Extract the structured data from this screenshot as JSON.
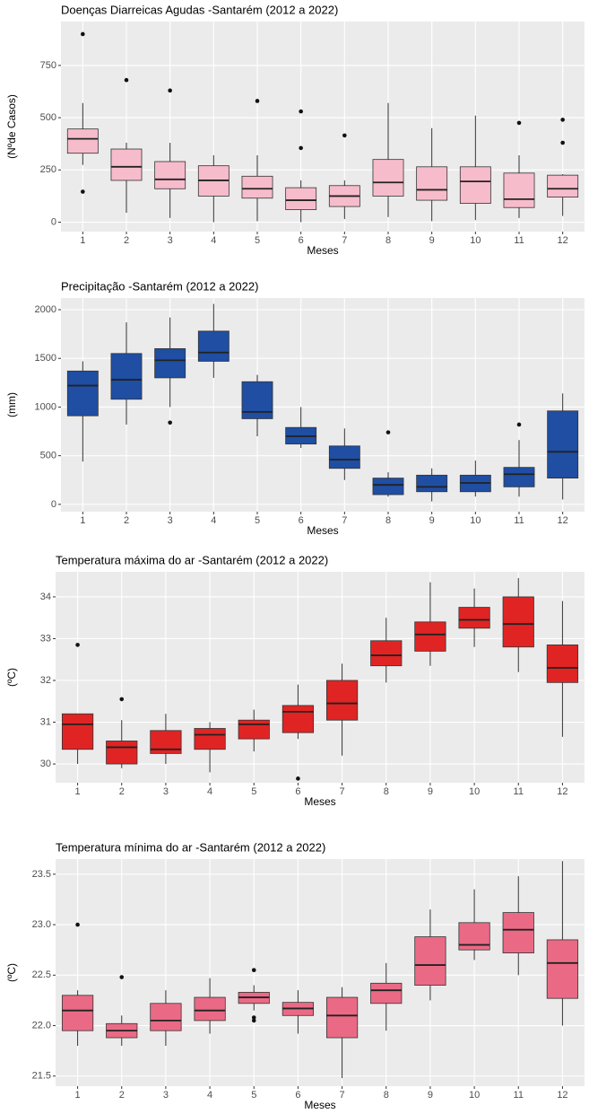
{
  "chart_data": [
    {
      "type": "box",
      "title": "Doenças Diarreicas Agudas -Santarém (2012 a 2022)",
      "x_label": "Meses",
      "y_label": "(Nºde Casos)",
      "categories": [
        "1",
        "2",
        "3",
        "4",
        "5",
        "6",
        "7",
        "8",
        "9",
        "10",
        "11",
        "12"
      ],
      "color": "#f7bccb",
      "ylim": [
        -45,
        960
      ],
      "yticks": [
        0,
        250,
        500,
        750
      ],
      "grid": true,
      "stats": [
        [
          274,
          330,
          399,
          446,
          570
        ],
        [
          45,
          200,
          265,
          350,
          380
        ],
        [
          20,
          160,
          205,
          290,
          380
        ],
        [
          0,
          125,
          200,
          270,
          320
        ],
        [
          5,
          115,
          160,
          220,
          320
        ],
        [
          0,
          60,
          105,
          165,
          200
        ],
        [
          15,
          75,
          125,
          175,
          200
        ],
        [
          25,
          125,
          190,
          300,
          570
        ],
        [
          5,
          105,
          155,
          265,
          450
        ],
        [
          10,
          90,
          195,
          265,
          510
        ],
        [
          20,
          70,
          110,
          235,
          320
        ],
        [
          30,
          120,
          160,
          225,
          230
        ]
      ],
      "outliers": [
        [
          146,
          900
        ],
        [
          680
        ],
        [
          630
        ],
        [],
        [
          580
        ],
        [
          355,
          530
        ],
        [
          415
        ],
        [],
        [],
        [],
        [
          475
        ],
        [
          380,
          490
        ]
      ]
    },
    {
      "type": "box",
      "title": "Precipitação -Santarém (2012 a 2022)",
      "x_label": "Meses",
      "y_label": "(mm)",
      "categories": [
        "1",
        "2",
        "3",
        "4",
        "5",
        "6",
        "7",
        "8",
        "9",
        "10",
        "11",
        "12"
      ],
      "color": "#1f4ea3",
      "ylim": [
        -75,
        2120
      ],
      "yticks": [
        0,
        500,
        1000,
        1500,
        2000
      ],
      "grid": true,
      "stats": [
        [
          440,
          910,
          1220,
          1370,
          1470
        ],
        [
          820,
          1080,
          1280,
          1550,
          1870
        ],
        [
          1000,
          1300,
          1480,
          1600,
          1920
        ],
        [
          1300,
          1470,
          1560,
          1780,
          2060
        ],
        [
          700,
          880,
          950,
          1260,
          1330
        ],
        [
          580,
          620,
          700,
          790,
          1000
        ],
        [
          250,
          370,
          460,
          600,
          780
        ],
        [
          80,
          100,
          200,
          270,
          330
        ],
        [
          30,
          130,
          180,
          300,
          370
        ],
        [
          80,
          130,
          220,
          300,
          450
        ],
        [
          80,
          180,
          310,
          380,
          660
        ],
        [
          50,
          270,
          540,
          960,
          1140
        ]
      ],
      "outliers": [
        [],
        [],
        [
          840
        ],
        [],
        [],
        [],
        [],
        [
          740
        ],
        [],
        [],
        [
          820
        ],
        []
      ]
    },
    {
      "type": "box",
      "title": "Temperatura máxima do ar -Santarém (2012 a 2022)",
      "x_label": "Meses",
      "y_label": "(ºC)",
      "categories": [
        "1",
        "2",
        "3",
        "4",
        "5",
        "6",
        "7",
        "8",
        "9",
        "10",
        "11",
        "12"
      ],
      "color": "#e02424",
      "ylim": [
        29.55,
        34.6
      ],
      "yticks": [
        30,
        31,
        32,
        33,
        34
      ],
      "grid": true,
      "stats": [
        [
          30.0,
          30.35,
          30.95,
          31.2,
          31.2
        ],
        [
          29.9,
          30.0,
          30.4,
          30.55,
          31.05
        ],
        [
          30.0,
          30.25,
          30.35,
          30.8,
          31.2
        ],
        [
          29.8,
          30.35,
          30.7,
          30.85,
          31.0
        ],
        [
          30.3,
          30.6,
          30.95,
          31.05,
          31.3
        ],
        [
          30.6,
          30.75,
          31.25,
          31.4,
          31.9
        ],
        [
          30.2,
          31.05,
          31.45,
          32.0,
          32.4
        ],
        [
          31.95,
          32.35,
          32.6,
          32.95,
          33.5
        ],
        [
          32.35,
          32.7,
          33.1,
          33.4,
          34.35
        ],
        [
          32.8,
          33.25,
          33.45,
          33.75,
          34.2
        ],
        [
          32.2,
          32.8,
          33.35,
          34.0,
          34.45
        ],
        [
          30.65,
          31.95,
          32.3,
          32.85,
          33.9
        ]
      ],
      "outliers": [
        [
          32.85
        ],
        [
          31.55
        ],
        [],
        [],
        [],
        [
          29.65
        ],
        [],
        [],
        [],
        [],
        [],
        []
      ]
    },
    {
      "type": "box",
      "title": "Temperatura mínima do ar -Santarém (2012 a 2022)",
      "x_label": "Meses",
      "y_label": "(ºC)",
      "categories": [
        "1",
        "2",
        "3",
        "4",
        "5",
        "6",
        "7",
        "8",
        "9",
        "10",
        "11",
        "12"
      ],
      "color": "#ea6a85",
      "ylim": [
        21.4,
        23.65
      ],
      "yticks": [
        21.5,
        {
          "value": 22,
          "label": "22.0"
        },
        22.5,
        {
          "value": 23,
          "label": "23.0"
        },
        23.5
      ],
      "grid": true,
      "stats": [
        [
          21.8,
          21.95,
          22.15,
          22.3,
          22.35
        ],
        [
          21.8,
          21.88,
          21.95,
          22.02,
          22.1
        ],
        [
          21.8,
          21.95,
          22.05,
          22.22,
          22.35
        ],
        [
          21.92,
          22.05,
          22.15,
          22.28,
          22.47
        ],
        [
          22.15,
          22.22,
          22.28,
          22.33,
          22.4
        ],
        [
          21.92,
          22.1,
          22.17,
          22.23,
          22.35
        ],
        [
          21.48,
          21.88,
          22.1,
          22.28,
          22.38
        ],
        [
          21.95,
          22.22,
          22.35,
          22.42,
          22.62
        ],
        [
          22.25,
          22.4,
          22.6,
          22.88,
          23.15
        ],
        [
          22.65,
          22.75,
          22.8,
          23.02,
          23.35
        ],
        [
          22.5,
          22.72,
          22.95,
          23.12,
          23.48
        ],
        [
          22.0,
          22.27,
          22.62,
          22.85,
          23.63
        ]
      ],
      "outliers": [
        [
          23.0
        ],
        [
          22.48
        ],
        [],
        [],
        [
          22.55,
          22.05,
          22.08
        ],
        [],
        [],
        [],
        [],
        [],
        [],
        []
      ]
    }
  ]
}
